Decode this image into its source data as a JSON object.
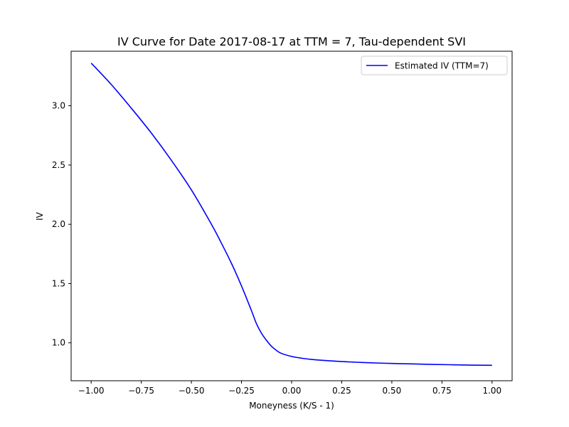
{
  "chart_data": {
    "type": "line",
    "title": "IV Curve for Date 2017-08-17 at TTM = 7, Tau-dependent SVI",
    "xlabel": "Moneyness (K/S - 1)",
    "ylabel": "IV",
    "xlim": [
      -1.1,
      1.1
    ],
    "ylim": [
      0.68,
      3.46
    ],
    "xticks": [
      -1.0,
      -0.75,
      -0.5,
      -0.25,
      0.0,
      0.25,
      0.5,
      0.75,
      1.0
    ],
    "xtick_labels": [
      "−1.00",
      "−0.75",
      "−0.50",
      "−0.25",
      "0.00",
      "0.25",
      "0.50",
      "0.75",
      "1.00"
    ],
    "yticks": [
      1.0,
      1.5,
      2.0,
      2.5,
      3.0
    ],
    "ytick_labels": [
      "1.0",
      "1.5",
      "2.0",
      "2.5",
      "3.0"
    ],
    "grid": false,
    "legend": "top-right",
    "series": [
      {
        "name": "Estimated IV (TTM=7)",
        "color": "#0000ff",
        "x": [
          -1.0,
          -0.9,
          -0.8,
          -0.7,
          -0.6,
          -0.5,
          -0.4,
          -0.35,
          -0.3,
          -0.25,
          -0.2,
          -0.175,
          -0.15,
          -0.125,
          -0.1,
          -0.075,
          -0.05,
          0.0,
          0.05,
          0.1,
          0.2,
          0.3,
          0.4,
          0.5,
          0.6,
          0.7,
          0.8,
          0.9,
          1.0
        ],
        "y": [
          3.36,
          3.18,
          2.98,
          2.77,
          2.54,
          2.29,
          2.0,
          1.84,
          1.67,
          1.48,
          1.27,
          1.16,
          1.08,
          1.02,
          0.97,
          0.935,
          0.91,
          0.885,
          0.87,
          0.86,
          0.847,
          0.838,
          0.831,
          0.826,
          0.822,
          0.818,
          0.815,
          0.812,
          0.81
        ]
      }
    ]
  }
}
